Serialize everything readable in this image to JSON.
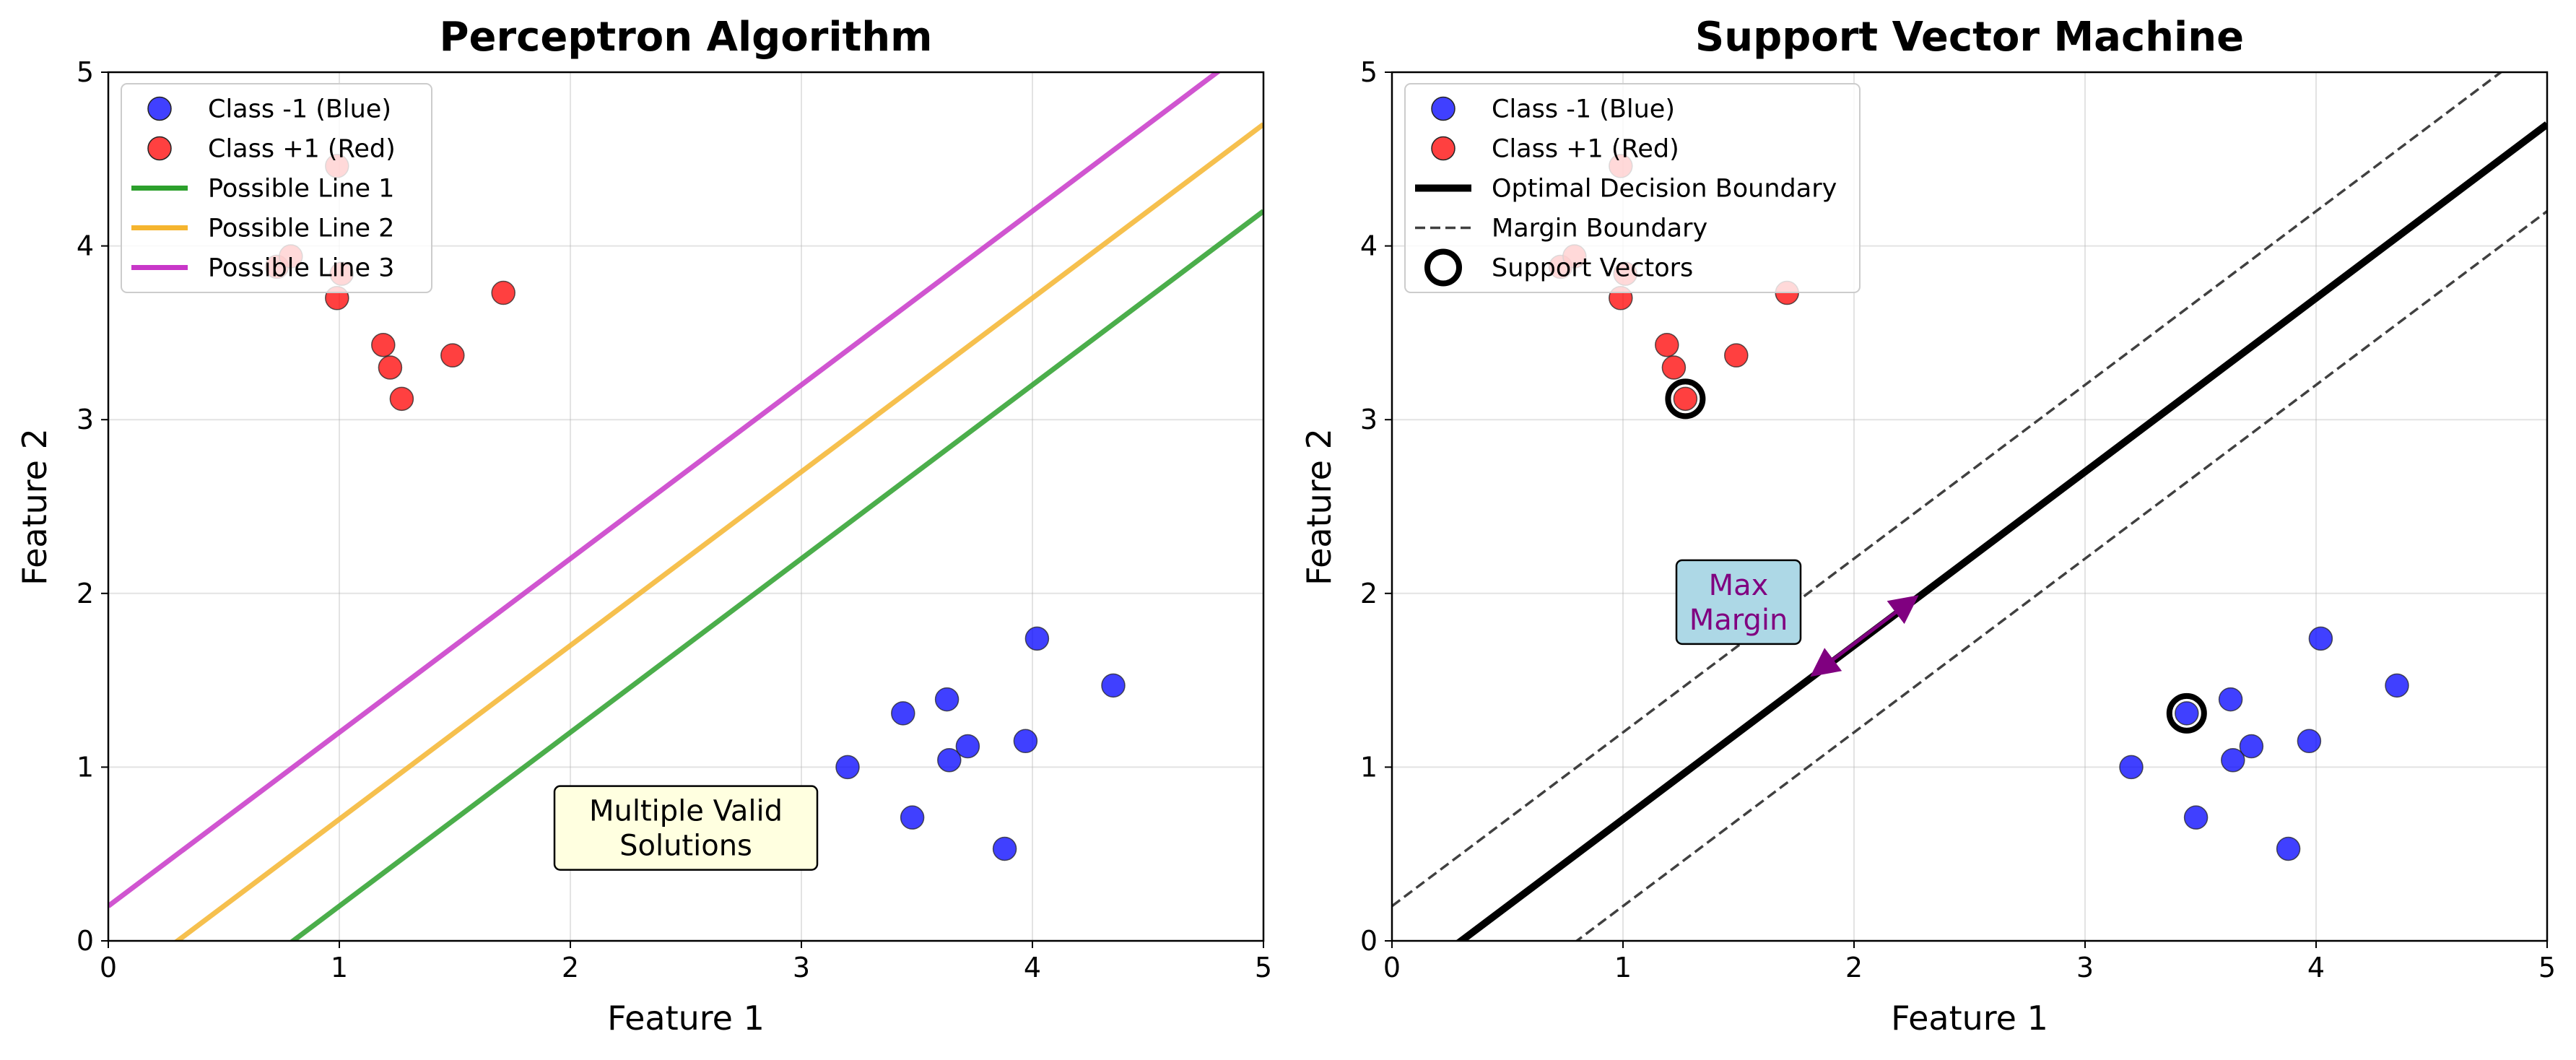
{
  "chart_data": [
    {
      "type": "scatter",
      "title": "Perceptron Algorithm",
      "xlabel": "Feature 1",
      "ylabel": "Feature 2",
      "xlim": [
        0,
        5
      ],
      "ylim": [
        0,
        5
      ],
      "xticks": [
        "0",
        "1",
        "2",
        "3",
        "4",
        "5"
      ],
      "yticks": [
        "0",
        "1",
        "2",
        "3",
        "4",
        "5"
      ],
      "grid": true,
      "legend_position": "top-left",
      "series": [
        {
          "name": "Class -1 (Blue)",
          "kind": "points",
          "color": "#0000ff",
          "points": [
            [
              3.2,
              1.0
            ],
            [
              3.44,
              1.31
            ],
            [
              3.63,
              1.39
            ],
            [
              3.64,
              1.04
            ],
            [
              3.72,
              1.12
            ],
            [
              3.48,
              0.71
            ],
            [
              3.88,
              0.53
            ],
            [
              3.97,
              1.15
            ],
            [
              4.02,
              1.74
            ],
            [
              4.35,
              1.47
            ]
          ]
        },
        {
          "name": "Class +1 (Red)",
          "kind": "points",
          "color": "#ff0000",
          "points": [
            [
              0.73,
              3.88
            ],
            [
              0.79,
              3.94
            ],
            [
              0.99,
              4.46
            ],
            [
              0.99,
              3.7
            ],
            [
              1.01,
              3.84
            ],
            [
              1.19,
              3.43
            ],
            [
              1.22,
              3.3
            ],
            [
              1.27,
              3.12
            ],
            [
              1.49,
              3.37
            ],
            [
              1.71,
              3.73
            ]
          ]
        },
        {
          "name": "Possible Line 1",
          "kind": "line",
          "color": "#2ca02c",
          "slope": 1,
          "intercept": -0.8
        },
        {
          "name": "Possible Line 2",
          "kind": "line",
          "color": "#f5b52f",
          "slope": 1,
          "intercept": -0.3
        },
        {
          "name": "Possible Line 3",
          "kind": "line",
          "color": "#c837c8",
          "slope": 1,
          "intercept": 0.2
        }
      ],
      "annotations": [
        {
          "text": "Multiple Valid\nSolutions",
          "x": 2.5,
          "y": 0.65,
          "box_color": "#ffffe0",
          "text_color": "#000000"
        }
      ]
    },
    {
      "type": "scatter",
      "title": "Support Vector Machine",
      "xlabel": "Feature 1",
      "ylabel": "Feature 2",
      "xlim": [
        0,
        5
      ],
      "ylim": [
        0,
        5
      ],
      "xticks": [
        "0",
        "1",
        "2",
        "3",
        "4",
        "5"
      ],
      "yticks": [
        "0",
        "1",
        "2",
        "3",
        "4",
        "5"
      ],
      "grid": true,
      "legend_position": "top-left",
      "series": [
        {
          "name": "Class -1 (Blue)",
          "kind": "points",
          "color": "#0000ff",
          "points": [
            [
              3.2,
              1.0
            ],
            [
              3.44,
              1.31
            ],
            [
              3.63,
              1.39
            ],
            [
              3.64,
              1.04
            ],
            [
              3.72,
              1.12
            ],
            [
              3.48,
              0.71
            ],
            [
              3.88,
              0.53
            ],
            [
              3.97,
              1.15
            ],
            [
              4.02,
              1.74
            ],
            [
              4.35,
              1.47
            ]
          ]
        },
        {
          "name": "Class +1 (Red)",
          "kind": "points",
          "color": "#ff0000",
          "points": [
            [
              0.73,
              3.88
            ],
            [
              0.79,
              3.94
            ],
            [
              0.99,
              4.46
            ],
            [
              0.99,
              3.7
            ],
            [
              1.01,
              3.84
            ],
            [
              1.19,
              3.43
            ],
            [
              1.22,
              3.3
            ],
            [
              1.27,
              3.12
            ],
            [
              1.49,
              3.37
            ],
            [
              1.71,
              3.73
            ]
          ]
        },
        {
          "name": "Optimal Decision Boundary",
          "kind": "line",
          "color": "#000000",
          "style": "solid",
          "slope": 1,
          "intercept": -0.3
        },
        {
          "name": "Margin Boundary",
          "kind": "line",
          "color": "#404040",
          "style": "dashed",
          "slope": 1,
          "intercept": 0.2
        },
        {
          "name": "",
          "kind": "line",
          "color": "#404040",
          "style": "dashed",
          "slope": 1,
          "intercept": -0.8,
          "legend": false
        },
        {
          "name": "Support Vectors",
          "kind": "markers",
          "color": "#000000",
          "points": [
            [
              1.27,
              3.12
            ],
            [
              3.44,
              1.31
            ]
          ]
        }
      ],
      "annotations": [
        {
          "text": "Max\nMargin",
          "x": 1.5,
          "y": 1.95,
          "box_color": "#add8e6",
          "text_color": "#800080"
        }
      ],
      "arrow": {
        "from": [
          1.86,
          1.57
        ],
        "to": [
          2.23,
          1.94
        ],
        "color": "#800080"
      }
    }
  ]
}
